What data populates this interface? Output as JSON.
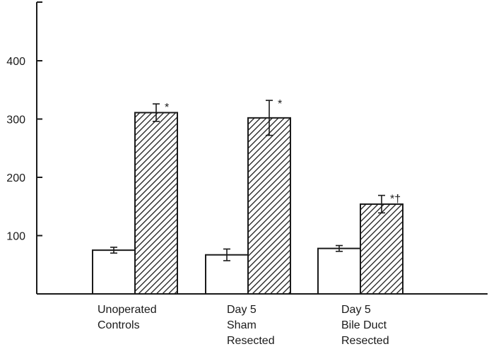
{
  "chart_data": {
    "type": "bar",
    "title": "",
    "xlabel": "",
    "ylabel": "",
    "ylim": [
      0,
      500
    ],
    "yticks": [
      100,
      200,
      300,
      400
    ],
    "grid": false,
    "legend": "none",
    "categories": [
      [
        "Unoperated",
        "Controls"
      ],
      [
        "Day 5",
        "Sham",
        "Resected"
      ],
      [
        "Day 5",
        "Bile Duct",
        "Resected"
      ]
    ],
    "series": [
      {
        "fill": "open",
        "values": [
          75,
          67,
          78
        ],
        "errors": [
          5,
          10,
          5
        ],
        "annotations": [
          "",
          "",
          ""
        ]
      },
      {
        "fill": "hatched",
        "values": [
          311,
          302,
          154
        ],
        "errors": [
          15,
          30,
          15
        ],
        "annotations": [
          "*",
          "*",
          "*†"
        ]
      }
    ],
    "colors": {
      "ink": "#1a1a1a",
      "open_fill": "#ffffff",
      "hatch_line": "#1a1a1a",
      "hatch_bg": "#ffffff"
    }
  }
}
